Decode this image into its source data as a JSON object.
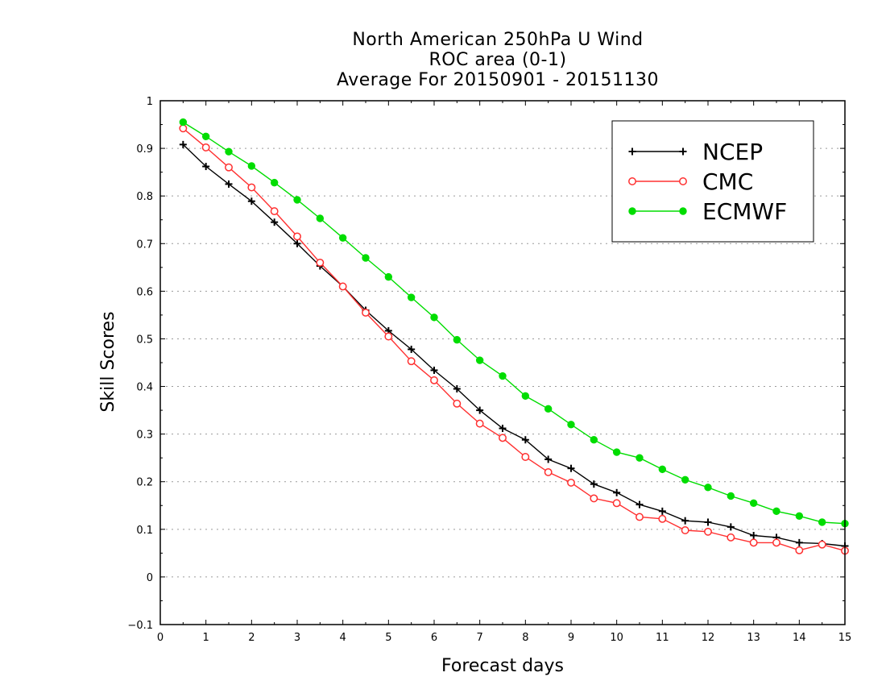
{
  "chart_data": {
    "type": "line",
    "title_lines": [
      "North American 250hPa U Wind",
      "ROC area (0-1)",
      "Average For 20150901 - 20151130"
    ],
    "xlabel": "Forecast days",
    "ylabel": "Skill Scores",
    "xlim": [
      0,
      15
    ],
    "ylim": [
      -0.1,
      1
    ],
    "x_ticks": [
      "0",
      "1",
      "2",
      "3",
      "4",
      "5",
      "6",
      "7",
      "8",
      "9",
      "10",
      "11",
      "12",
      "13",
      "14",
      "15"
    ],
    "y_ticks": [
      "−0.1",
      "0",
      "0.1",
      "0.2",
      "0.3",
      "0.4",
      "0.5",
      "0.6",
      "0.7",
      "0.8",
      "0.9",
      "1"
    ],
    "grid": "horizontal dotted",
    "legend_position": "top-right",
    "x": [
      0.5,
      1,
      1.5,
      2,
      2.5,
      3,
      3.5,
      4,
      4.5,
      5,
      5.5,
      6,
      6.5,
      7,
      7.5,
      8,
      8.5,
      9,
      9.5,
      10,
      10.5,
      11,
      11.5,
      12,
      12.5,
      13,
      13.5,
      14,
      14.5,
      15
    ],
    "series": [
      {
        "name": "NCEP",
        "color": "#000000",
        "marker": "plus",
        "values": [
          0.908,
          0.862,
          0.825,
          0.789,
          0.745,
          0.7,
          0.653,
          0.61,
          0.56,
          0.517,
          0.478,
          0.434,
          0.395,
          0.35,
          0.312,
          0.288,
          0.247,
          0.228,
          0.195,
          0.177,
          0.152,
          0.138,
          0.118,
          0.115,
          0.105,
          0.087,
          0.083,
          0.072,
          0.07,
          0.065
        ]
      },
      {
        "name": "CMC",
        "color": "#ff3030",
        "marker": "open-circle",
        "values": [
          0.942,
          0.902,
          0.86,
          0.818,
          0.768,
          0.715,
          0.66,
          0.61,
          0.555,
          0.505,
          0.453,
          0.413,
          0.364,
          0.322,
          0.292,
          0.252,
          0.22,
          0.198,
          0.165,
          0.155,
          0.126,
          0.122,
          0.098,
          0.095,
          0.083,
          0.072,
          0.072,
          0.056,
          0.068,
          0.055
        ]
      },
      {
        "name": "ECMWF",
        "color": "#00dd00",
        "marker": "filled-circle",
        "values": [
          0.955,
          0.925,
          0.893,
          0.863,
          0.828,
          0.792,
          0.753,
          0.712,
          0.67,
          0.63,
          0.587,
          0.545,
          0.498,
          0.455,
          0.422,
          0.38,
          0.353,
          0.32,
          0.288,
          0.262,
          0.25,
          0.226,
          0.204,
          0.188,
          0.17,
          0.155,
          0.138,
          0.128,
          0.115,
          0.112
        ]
      }
    ]
  }
}
